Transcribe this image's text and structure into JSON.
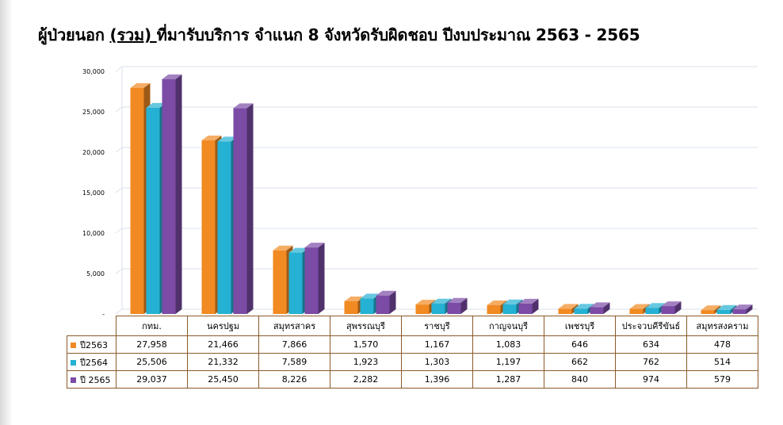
{
  "title_prefix": "ผู้ป่วยนอก ",
  "title_underlined": "(รวม) ",
  "title_suffix": "ที่มารับบริการ จำแนก 8 จังหวัดรับผิดชอบ ปีงบประมาณ 2563 - 2565",
  "chart_data": {
    "type": "bar",
    "categories": [
      "กทม.",
      "นครปฐม",
      "สมุทรสาคร",
      "สุพรรณบุรี",
      "ราชบุรี",
      "กาญจนบุรี",
      "เพชรบุรี",
      "ประจวบคีรีขันธ์",
      "สมุทรสงคราม"
    ],
    "series": [
      {
        "name": "ปี2563",
        "color": "#f18a22",
        "values": [
          27958,
          21466,
          7866,
          1570,
          1167,
          1083,
          646,
          634,
          478
        ]
      },
      {
        "name": "ปี2564",
        "color": "#25b1d3",
        "values": [
          25506,
          21332,
          7589,
          1923,
          1303,
          1197,
          662,
          762,
          514
        ]
      },
      {
        "name": "ปี 2565",
        "color": "#7b4ba6",
        "values": [
          29037,
          25450,
          8226,
          2282,
          1396,
          1287,
          840,
          974,
          579
        ]
      }
    ],
    "ylim": [
      0,
      30000
    ],
    "yticks": [
      0,
      5000,
      10000,
      15000,
      20000,
      25000,
      30000
    ],
    "ytick_labels": [
      "-",
      "5,000",
      "10,000",
      "15,000",
      "20,000",
      "25,000",
      "30,000"
    ],
    "grid": true,
    "legend": "data-table-below",
    "table_cells": [
      [
        "27,958",
        "21,466",
        "7,866",
        "1,570",
        "1,167",
        "1,083",
        "646",
        "634",
        "478"
      ],
      [
        "25,506",
        "21,332",
        "7,589",
        "1,923",
        "1,303",
        "1,197",
        "662",
        "762",
        "514"
      ],
      [
        "29,037",
        "25,450",
        "8,226",
        "2,282",
        "1,396",
        "1,287",
        "840",
        "974",
        "579"
      ]
    ]
  }
}
